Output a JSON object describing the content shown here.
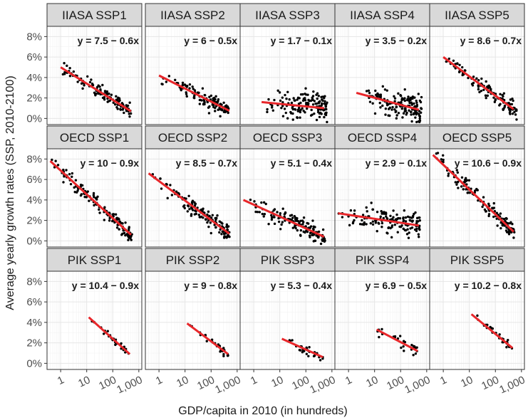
{
  "chart_data": {
    "type": "scatter",
    "xlabel": "GDP/capita in 2010 (in hundreds)",
    "ylabel": "Average yearly growth rates (SSP, 2010-2100)",
    "x_scale": "log10",
    "xlim": [
      0.3,
      1300
    ],
    "ylim": [
      -0.6,
      9.0
    ],
    "x_ticks": [
      1,
      10,
      100,
      1000
    ],
    "x_tick_labels": [
      "1",
      "10",
      "100",
      "1,000"
    ],
    "y_ticks": [
      0,
      2,
      4,
      6,
      8
    ],
    "y_tick_labels": [
      "0%",
      "2%",
      "4%",
      "6%",
      "8%"
    ],
    "grid": true,
    "facet_rows": [
      "IIASA",
      "OECD",
      "PIK"
    ],
    "facet_cols": [
      "SSP1",
      "SSP2",
      "SSP3",
      "SSP4",
      "SSP5"
    ],
    "panels": [
      {
        "title": "IIASA SSP1",
        "equation": "y = 7.5 − 0.6x",
        "fit": {
          "x": [
            1,
            500
          ],
          "y": [
            5.0,
            0.7
          ]
        },
        "n_points": 120,
        "x_range": [
          1,
          500
        ],
        "noise": 0.35,
        "fit_intercept": 7.5,
        "fit_slope": -0.6
      },
      {
        "title": "IIASA SSP2",
        "equation": "y = 6 − 0.5x",
        "fit": {
          "x": [
            1,
            500
          ],
          "y": [
            4.2,
            0.75
          ]
        },
        "n_points": 120,
        "x_range": [
          1,
          500
        ],
        "noise": 0.4,
        "fit_intercept": 6,
        "fit_slope": -0.5
      },
      {
        "title": "IIASA SSP3",
        "equation": "y = 1.7 − 0.1x",
        "fit": {
          "x": [
            2,
            500
          ],
          "y": [
            1.6,
            1.0
          ]
        },
        "n_points": 150,
        "x_range": [
          2,
          650
        ],
        "noise": 0.75,
        "fit_intercept": 1.7,
        "fit_slope": -0.1
      },
      {
        "title": "IIASA SSP4",
        "equation": "y = 3.5 − 0.2x",
        "fit": {
          "x": [
            2,
            500
          ],
          "y": [
            2.5,
            0.85
          ]
        },
        "n_points": 150,
        "x_range": [
          2,
          650
        ],
        "noise": 0.7,
        "fit_intercept": 3.5,
        "fit_slope": -0.2
      },
      {
        "title": "IIASA SSP5",
        "equation": "y = 8.6 − 0.7x",
        "fit": {
          "x": [
            1,
            500
          ],
          "y": [
            6.0,
            0.9
          ]
        },
        "n_points": 120,
        "x_range": [
          1,
          650
        ],
        "noise": 0.35,
        "fit_intercept": 8.6,
        "fit_slope": -0.7
      },
      {
        "title": "OECD SSP1",
        "equation": "y = 10 − 0.9x",
        "fit": {
          "x": [
            0.4,
            500
          ],
          "y": [
            7.8,
            0.6
          ]
        },
        "n_points": 140,
        "x_range": [
          0.4,
          550
        ],
        "noise": 0.4,
        "fit_intercept": 10,
        "fit_slope": -0.9
      },
      {
        "title": "OECD SSP2",
        "equation": "y = 8.5 − 0.7x",
        "fit": {
          "x": [
            0.4,
            500
          ],
          "y": [
            6.6,
            0.7
          ]
        },
        "n_points": 140,
        "x_range": [
          0.4,
          550
        ],
        "noise": 0.4,
        "fit_intercept": 8.5,
        "fit_slope": -0.7
      },
      {
        "title": "OECD SSP3",
        "equation": "y = 5.1 − 0.4x",
        "fit": {
          "x": [
            0.4,
            500
          ],
          "y": [
            4.0,
            0.4
          ]
        },
        "n_points": 140,
        "x_range": [
          0.4,
          550
        ],
        "noise": 0.45,
        "fit_intercept": 5.1,
        "fit_slope": -0.4
      },
      {
        "title": "OECD SSP4",
        "equation": "y = 2.9 − 0.1x",
        "fit": {
          "x": [
            0.4,
            500
          ],
          "y": [
            2.7,
            1.5
          ]
        },
        "n_points": 140,
        "x_range": [
          0.4,
          550
        ],
        "noise": 0.6,
        "fit_intercept": 2.9,
        "fit_slope": -0.1
      },
      {
        "title": "OECD SSP5",
        "equation": "y = 10.6 − 0.9x",
        "fit": {
          "x": [
            0.4,
            500
          ],
          "y": [
            8.4,
            0.9
          ]
        },
        "n_points": 140,
        "x_range": [
          0.4,
          550
        ],
        "noise": 0.4,
        "fit_intercept": 10.6,
        "fit_slope": -0.9
      },
      {
        "title": "PIK SSP1",
        "equation": "y = 10.4 − 0.9x",
        "fit": {
          "x": [
            12,
            450
          ],
          "y": [
            4.5,
            0.9
          ]
        },
        "n_points": 30,
        "x_range": [
          12,
          450
        ],
        "noise": 0.2,
        "fit_intercept": 10.4,
        "fit_slope": -0.9
      },
      {
        "title": "PIK SSP2",
        "equation": "y = 9 − 0.8x",
        "fit": {
          "x": [
            12,
            450
          ],
          "y": [
            3.9,
            0.9
          ]
        },
        "n_points": 30,
        "x_range": [
          12,
          450
        ],
        "noise": 0.2,
        "fit_intercept": 9,
        "fit_slope": -0.8
      },
      {
        "title": "PIK SSP3",
        "equation": "y = 5.3 − 0.4x",
        "fit": {
          "x": [
            12,
            450
          ],
          "y": [
            2.4,
            0.6
          ]
        },
        "n_points": 30,
        "x_range": [
          12,
          450
        ],
        "noise": 0.25,
        "fit_intercept": 5.3,
        "fit_slope": -0.4
      },
      {
        "title": "PIK SSP4",
        "equation": "y = 6.9 − 0.5x",
        "fit": {
          "x": [
            12,
            450
          ],
          "y": [
            3.3,
            1.2
          ]
        },
        "n_points": 30,
        "x_range": [
          12,
          450
        ],
        "noise": 0.3,
        "fit_intercept": 6.9,
        "fit_slope": -0.5
      },
      {
        "title": "PIK SSP5",
        "equation": "y = 10.2 − 0.8x",
        "fit": {
          "x": [
            12,
            450
          ],
          "y": [
            4.8,
            1.5
          ]
        },
        "n_points": 30,
        "x_range": [
          12,
          450
        ],
        "noise": 0.2,
        "fit_intercept": 10.2,
        "fit_slope": -0.8
      }
    ]
  }
}
